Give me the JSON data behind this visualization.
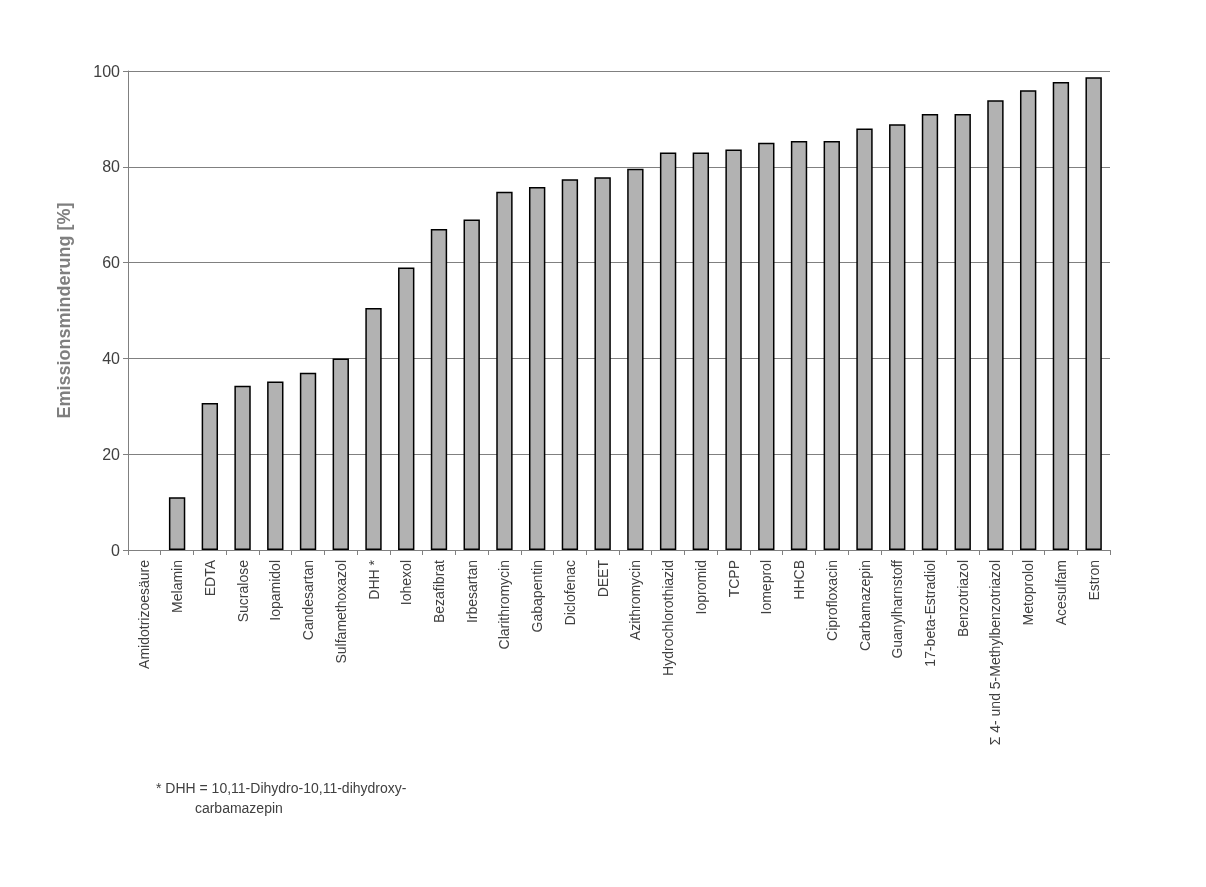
{
  "chart_data": {
    "type": "bar",
    "ylabel": "Emissionsminderung [%]",
    "categories": [
      "Amidotrizoesäure",
      "Melamin",
      "EDTA",
      "Sucralose",
      "Iopamidol",
      "Candesartan",
      "Sulfamethoxazol",
      "DHH *",
      "Iohexol",
      "Bezafibrat",
      "Irbesartan",
      "Clarithromycin",
      "Gabapentin",
      "Diclofenac",
      "DEET",
      "Azithromycin",
      "Hydrochlorothiazid",
      "Iopromid",
      "TCPP",
      "Iomeprol",
      "HHCB",
      "Ciprofloxacin",
      "Carbamazepin",
      "Guanylharnstoff",
      "17-beta-Estradiol",
      "Benzotriazol",
      "Σ 4- und 5-Methylbenzotriazol",
      "Metoprolol",
      "Acesulfam",
      "Estron"
    ],
    "values": [
      0,
      11,
      30.7,
      34.3,
      35.2,
      37,
      40,
      50.5,
      59,
      67,
      69,
      74.8,
      75.8,
      77.4,
      77.8,
      79.6,
      83,
      83,
      83.6,
      85,
      85.4,
      85.4,
      88,
      88.9,
      91,
      91,
      93.9,
      96,
      97.7,
      98.7
    ],
    "color": "#b2b2b2",
    "ylim": [
      0,
      100
    ],
    "yticks": [
      0,
      20,
      40,
      60,
      80,
      100
    ],
    "grid": "y",
    "annotations": [
      "* DHH = 10,11-Dihydro-10,11-dihydroxy-\n          carbamazepin"
    ]
  }
}
